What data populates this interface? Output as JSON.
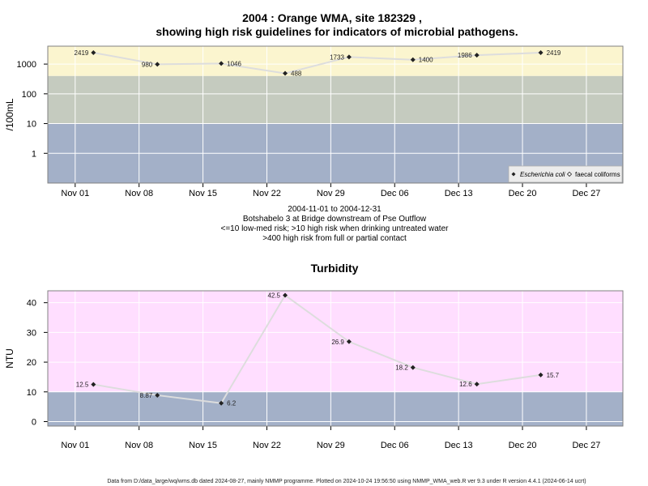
{
  "title_line1": "2004 : Orange WMA, site 182329 ,",
  "title_line2": "showing high risk guidelines for indicators of microbial pathogens.",
  "caption": [
    "2004-11-01 to 2004-12-31",
    "Botshabelo 3 at Bridge downstream of Pse Outflow",
    "<=10 low-med risk; >10 high risk when drinking untreated water",
    ">400 high risk from full or partial contact"
  ],
  "footer": "Data from D:/data_large/wq/wms.db dated 2024-08-27, mainly NMMP programme. Plotted on 2024-10-24 19:56:50 using NMMP_WMA_web.R ver 9.3 under R version 4.4.1 (2024-06-14 ucrt)",
  "colors": {
    "band_high": "#fbf5cf",
    "band_mid": "#c5cbbf",
    "band_low": "#a3b0c8",
    "turb_high": "#ffdeff",
    "grid": "#ffffff",
    "line": "#dddddd",
    "point": "#222222"
  },
  "chart_data": [
    {
      "type": "line",
      "title": "",
      "ylabel": "/100mL",
      "xlabel": "",
      "y_scale": "log",
      "x_tick_labels": [
        "Nov 01",
        "Nov 08",
        "Nov 15",
        "Nov 22",
        "Nov 29",
        "Dec 06",
        "Dec 13",
        "Dec 20",
        "Dec 27"
      ],
      "x_ticks": [
        "2004-11-01",
        "2004-11-08",
        "2004-11-15",
        "2004-11-22",
        "2004-11-29",
        "2004-12-06",
        "2004-12-13",
        "2004-12-20",
        "2004-12-27"
      ],
      "y_tick_labels": [
        "1",
        "10",
        "100",
        "1000"
      ],
      "y_ticks": [
        1,
        10,
        100,
        1000
      ],
      "xlim": [
        "2004-10-29",
        "2004-12-31"
      ],
      "ylim": [
        0.1,
        4000
      ],
      "bands": [
        {
          "from": 0.1,
          "to": 10,
          "color_key": "band_low"
        },
        {
          "from": 10,
          "to": 400,
          "color_key": "band_mid"
        },
        {
          "from": 400,
          "to": 4000,
          "color_key": "band_high"
        }
      ],
      "legend_position": "bottom-right",
      "legend": [
        "Escherichia coli",
        "faecal coliforms"
      ],
      "series": [
        {
          "name": "Escherichia coli",
          "x": [
            "2004-11-03",
            "2004-11-10",
            "2004-11-17",
            "2004-11-24",
            "2004-12-01",
            "2004-12-08",
            "2004-12-15",
            "2004-12-22"
          ],
          "y": [
            2419,
            980,
            1046,
            488,
            1733,
            1400,
            1986,
            2419
          ],
          "labels": [
            "2419",
            "980",
            "1046",
            "488",
            "1733",
            "1400",
            "1986",
            "2419"
          ],
          "label_side": [
            "left",
            "left",
            "right",
            "right",
            "left",
            "right",
            "left",
            "right"
          ]
        }
      ]
    },
    {
      "type": "line",
      "title": "Turbidity",
      "ylabel": "NTU",
      "xlabel": "",
      "y_scale": "linear",
      "x_tick_labels": [
        "Nov 01",
        "Nov 08",
        "Nov 15",
        "Nov 22",
        "Nov 29",
        "Dec 06",
        "Dec 13",
        "Dec 20",
        "Dec 27"
      ],
      "x_ticks": [
        "2004-11-01",
        "2004-11-08",
        "2004-11-15",
        "2004-11-22",
        "2004-11-29",
        "2004-12-06",
        "2004-12-13",
        "2004-12-20",
        "2004-12-27"
      ],
      "y_tick_labels": [
        "0",
        "10",
        "20",
        "30",
        "40"
      ],
      "y_ticks": [
        0,
        10,
        20,
        30,
        40
      ],
      "xlim": [
        "2004-10-29",
        "2004-12-31"
      ],
      "ylim": [
        -1.5,
        44
      ],
      "bands": [
        {
          "from": -1.5,
          "to": 10,
          "color_key": "band_low"
        },
        {
          "from": 10,
          "to": 44,
          "color_key": "turb_high"
        }
      ],
      "series": [
        {
          "x": [
            "2004-11-03",
            "2004-11-10",
            "2004-11-17",
            "2004-11-24",
            "2004-12-01",
            "2004-12-08",
            "2004-12-15",
            "2004-12-22"
          ],
          "y": [
            12.5,
            8.87,
            6.2,
            42.5,
            26.9,
            18.2,
            12.6,
            15.7
          ],
          "labels": [
            "12.5",
            "8.87",
            "6.2",
            "42.5",
            "26.9",
            "18.2",
            "12.6",
            "15.7"
          ],
          "label_side": [
            "left",
            "left",
            "right",
            "left",
            "left",
            "left",
            "left",
            "right"
          ]
        }
      ]
    }
  ]
}
